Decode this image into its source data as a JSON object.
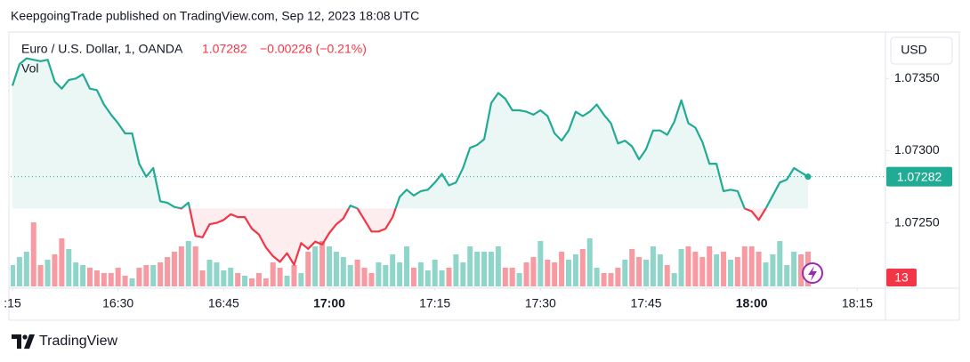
{
  "header": {
    "publisher": "KeepgoingTrade published on TradingView.com, Sep 12, 2023 18:08 UTC"
  },
  "chart_data": {
    "type": "baseline",
    "symbol": "Euro / U.S. Dollar, 1, OANDA",
    "change": "−0.00226 (−0.21%)",
    "volume_label": "Vol",
    "currency": "USD",
    "x": [
      "16:15",
      "16:16",
      "16:17",
      "16:18",
      "16:19",
      "16:20",
      "16:21",
      "16:22",
      "16:23",
      "16:24",
      "16:25",
      "16:26",
      "16:27",
      "16:28",
      "16:29",
      "16:30",
      "16:31",
      "16:32",
      "16:33",
      "16:34",
      "16:35",
      "16:36",
      "16:37",
      "16:38",
      "16:39",
      "16:40",
      "16:41",
      "16:42",
      "16:43",
      "16:44",
      "16:45",
      "16:46",
      "16:47",
      "16:48",
      "16:49",
      "16:50",
      "16:51",
      "16:52",
      "16:53",
      "16:54",
      "16:55",
      "16:56",
      "16:57",
      "16:58",
      "16:59",
      "17:00",
      "17:01",
      "17:02",
      "17:03",
      "17:04",
      "17:05",
      "17:06",
      "17:07",
      "17:08",
      "17:09",
      "17:10",
      "17:11",
      "17:12",
      "17:13",
      "17:14",
      "17:15",
      "17:16",
      "17:17",
      "17:18",
      "17:19",
      "17:20",
      "17:21",
      "17:22",
      "17:23",
      "17:24",
      "17:25",
      "17:26",
      "17:27",
      "17:28",
      "17:29",
      "17:30",
      "17:31",
      "17:32",
      "17:33",
      "17:34",
      "17:35",
      "17:36",
      "17:37",
      "17:38",
      "17:39",
      "17:40",
      "17:41",
      "17:42",
      "17:43",
      "17:44",
      "17:45",
      "17:46",
      "17:47",
      "17:48",
      "17:49",
      "17:50",
      "17:51",
      "17:52",
      "17:53",
      "17:54",
      "17:55",
      "17:56",
      "17:57",
      "17:58",
      "17:59",
      "18:00",
      "18:01",
      "18:02",
      "18:03",
      "18:04",
      "18:05",
      "18:06",
      "18:07",
      "18:08"
    ],
    "values": [
      1.07345,
      1.0736,
      1.07364,
      1.07363,
      1.07362,
      1.07363,
      1.07348,
      1.07343,
      1.07349,
      1.0735,
      1.07353,
      1.07343,
      1.07342,
      1.07332,
      1.07325,
      1.07319,
      1.07312,
      1.07312,
      1.07291,
      1.07282,
      1.07288,
      1.07265,
      1.07264,
      1.07261,
      1.0726,
      1.07264,
      1.07241,
      1.0724,
      1.07249,
      1.0725,
      1.07252,
      1.07256,
      1.07254,
      1.07254,
      1.07246,
      1.07242,
      1.07233,
      1.07227,
      1.07223,
      1.07229,
      1.07221,
      1.07236,
      1.07232,
      1.07237,
      1.07235,
      1.07243,
      1.07249,
      1.07253,
      1.07262,
      1.0726,
      1.07252,
      1.07244,
      1.07244,
      1.07246,
      1.07254,
      1.07268,
      1.07273,
      1.07269,
      1.07272,
      1.07273,
      1.07278,
      1.07284,
      1.07276,
      1.07278,
      1.07288,
      1.07302,
      1.07304,
      1.07308,
      1.07333,
      1.0734,
      1.07336,
      1.07328,
      1.07328,
      1.07327,
      1.07325,
      1.07328,
      1.07324,
      1.07312,
      1.07307,
      1.07314,
      1.07327,
      1.07324,
      1.07327,
      1.07332,
      1.07325,
      1.07319,
      1.07305,
      1.07307,
      1.07303,
      1.07294,
      1.07301,
      1.07314,
      1.07314,
      1.07311,
      1.0732,
      1.07335,
      1.07319,
      1.07316,
      1.07306,
      1.07291,
      1.07291,
      1.07272,
      1.07273,
      1.07272,
      1.0726,
      1.07258,
      1.07252,
      1.0726,
      1.07269,
      1.07278,
      1.0728,
      1.07288,
      1.07285,
      1.07282
    ],
    "volumes": [
      8,
      11,
      13,
      24,
      8,
      10,
      12,
      18,
      14,
      9,
      8,
      7,
      6,
      5,
      5,
      7,
      4,
      3,
      7,
      8,
      8,
      9,
      11,
      13,
      15,
      17,
      15,
      6,
      10,
      9,
      6,
      7,
      5,
      4,
      3,
      5,
      3,
      9,
      7,
      4,
      8,
      5,
      13,
      15,
      17,
      15,
      13,
      11,
      8,
      10,
      7,
      5,
      9,
      8,
      12,
      9,
      15,
      7,
      9,
      6,
      10,
      6,
      7,
      12,
      9,
      15,
      13,
      13,
      13,
      15,
      7,
      7,
      5,
      9,
      11,
      17,
      10,
      9,
      13,
      10,
      12,
      14,
      18,
      7,
      5,
      5,
      7,
      10,
      14,
      11,
      10,
      15,
      12,
      8,
      5,
      14,
      15,
      13,
      11,
      15,
      12,
      13,
      10,
      11,
      15,
      15,
      13,
      9,
      12,
      17,
      8,
      13,
      12,
      13
    ],
    "baseline": 1.0726,
    "up_color": "#22ab94",
    "down_color": "#f23645",
    "ylim": [
      1.07206,
      1.07381
    ],
    "yticks": [
      {
        "value": 1.0735,
        "label": "1.07350"
      },
      {
        "value": 1.073,
        "label": "1.07300"
      },
      {
        "value": 1.0725,
        "label": "1.07250"
      }
    ],
    "xlim": [
      "16:15",
      "18:19"
    ],
    "xticks": [
      {
        "value": "16:15",
        "label": ":15"
      },
      "16:30",
      "16:45",
      "17:00",
      "17:15",
      "17:30",
      "17:45",
      "18:00",
      "18:15"
    ]
  },
  "footer": {
    "brand": "TradingView"
  }
}
